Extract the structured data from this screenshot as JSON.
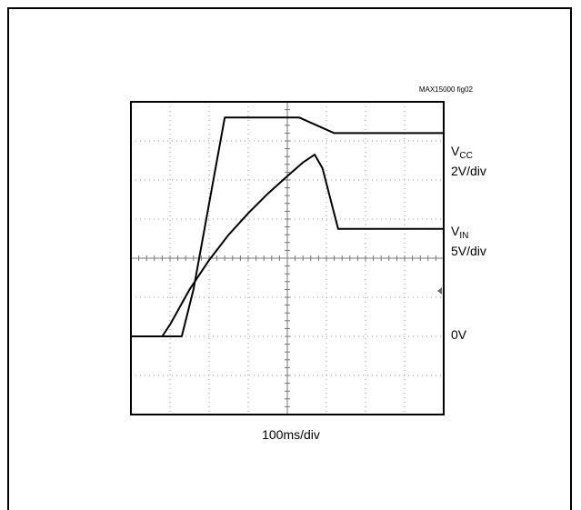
{
  "figure_id": "MAX15000 fig02",
  "chart_data": {
    "type": "line",
    "title": "",
    "xlabel": "100ms/div",
    "grid": true,
    "divisions": {
      "x": 8,
      "y": 8
    },
    "xlim": [
      0,
      800
    ],
    "x_unit": "ms",
    "series": [
      {
        "name": "VCC",
        "scale_label": "2V/div",
        "x": [
          0,
          130,
          160,
          240,
          340,
          430,
          520,
          800
        ],
        "y": [
          0,
          0,
          2.4,
          11.2,
          11.2,
          11.2,
          10.4,
          10.4
        ]
      },
      {
        "name": "VIN",
        "scale_label": "5V/div",
        "x": [
          0,
          80,
          100,
          150,
          200,
          250,
          300,
          350,
          400,
          440,
          470,
          490,
          530,
          800
        ],
        "y": [
          0,
          0,
          1.5,
          6,
          9.75,
          13,
          15.75,
          18.25,
          20.5,
          22.25,
          23.25,
          21.5,
          13.75,
          13.75
        ]
      }
    ],
    "right_labels": [
      {
        "main": "V",
        "sub": "CC",
        "scale": "2V/div"
      },
      {
        "main": "V",
        "sub": "IN",
        "scale": "5V/div"
      },
      {
        "main": "0V"
      }
    ]
  }
}
